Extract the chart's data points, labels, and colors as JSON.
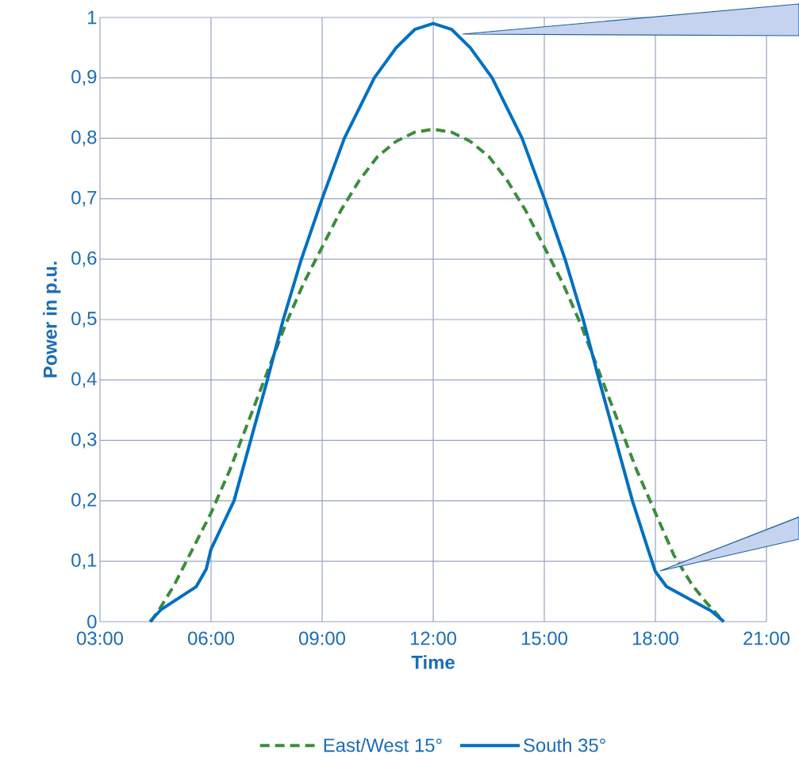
{
  "chart_data": {
    "type": "line",
    "xlabel": "Time",
    "ylabel": "Power in p.u.",
    "xlim": [
      3,
      21
    ],
    "ylim": [
      0,
      1
    ],
    "xticks": [
      {
        "value": 3,
        "label": "03:00"
      },
      {
        "value": 6,
        "label": "06:00"
      },
      {
        "value": 9,
        "label": "09:00"
      },
      {
        "value": 12,
        "label": "12:00"
      },
      {
        "value": 15,
        "label": "15:00"
      },
      {
        "value": 18,
        "label": "18:00"
      },
      {
        "value": 21,
        "label": "21:00"
      }
    ],
    "yticks": [
      0,
      {
        "value": 0.1,
        "label": "0,1"
      },
      {
        "value": 0.2,
        "label": "0,2"
      },
      {
        "value": 0.3,
        "label": "0,3"
      },
      {
        "value": 0.4,
        "label": "0,4"
      },
      {
        "value": 0.5,
        "label": "0,5"
      },
      {
        "value": 0.6,
        "label": "0,6"
      },
      {
        "value": 0.7,
        "label": "0,7"
      },
      {
        "value": 0.8,
        "label": "0,8"
      },
      {
        "value": 0.9,
        "label": "0,9"
      },
      1
    ],
    "grid": true,
    "legend": "bottom",
    "series": [
      {
        "name": "East/West 15°",
        "color": "#3c8c3c",
        "line_style": "dashed",
        "x": [
          4.37,
          4.6,
          5.0,
          5.5,
          6.0,
          6.5,
          7.0,
          7.5,
          8.0,
          8.5,
          9.0,
          9.5,
          10.0,
          10.5,
          11.0,
          11.5,
          12.0,
          12.5,
          13.0,
          13.5,
          14.0,
          14.5,
          15.0,
          15.5,
          16.0,
          16.5,
          17.0,
          17.5,
          18.0,
          18.5,
          19.0,
          19.4,
          19.7,
          19.8
        ],
        "values": [
          0,
          0.02,
          0.06,
          0.12,
          0.18,
          0.25,
          0.33,
          0.41,
          0.49,
          0.56,
          0.62,
          0.68,
          0.73,
          0.77,
          0.795,
          0.81,
          0.815,
          0.81,
          0.795,
          0.77,
          0.73,
          0.68,
          0.62,
          0.56,
          0.49,
          0.41,
          0.33,
          0.25,
          0.18,
          0.11,
          0.06,
          0.03,
          0.01,
          0
        ]
      },
      {
        "name": "South 35°",
        "color": "#0070c0",
        "line_style": "solid",
        "x": [
          4.35,
          4.65,
          5.6,
          5.87,
          6.0,
          6.62,
          7.07,
          7.52,
          7.95,
          8.44,
          9.0,
          9.6,
          10.41,
          11.0,
          11.5,
          12.0,
          12.5,
          13.0,
          13.59,
          14.4,
          15.0,
          15.56,
          16.05,
          16.48,
          16.93,
          17.38,
          17.8,
          18.0,
          18.3,
          19.5,
          19.85
        ],
        "values": [
          0,
          0.02,
          0.058,
          0.087,
          0.12,
          0.2,
          0.3,
          0.4,
          0.5,
          0.6,
          0.7,
          0.8,
          0.9,
          0.95,
          0.98,
          0.99,
          0.98,
          0.95,
          0.9,
          0.8,
          0.7,
          0.6,
          0.5,
          0.4,
          0.3,
          0.2,
          0.12,
          0.083,
          0.058,
          0.018,
          0
        ]
      }
    ]
  }
}
